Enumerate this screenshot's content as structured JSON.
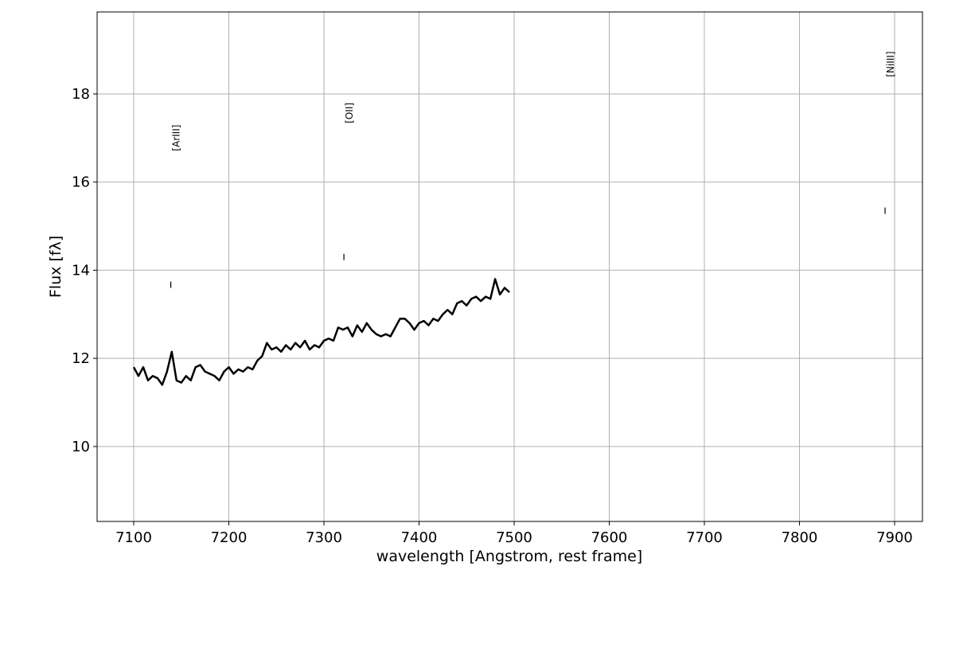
{
  "chart_data": {
    "type": "line",
    "x_label": "wavelength [Angstrom, rest frame]",
    "y_label": "Flux [fλ]",
    "color": "#000000",
    "grid": true,
    "xlim": [
      7061.5,
      7929.3
    ],
    "ylim": [
      8.3,
      19.86
    ],
    "xticks": [
      7100,
      7200,
      7300,
      7400,
      7500,
      7600,
      7700,
      7800,
      7900
    ],
    "yticks": [
      10,
      12,
      14,
      16,
      18
    ],
    "x": [
      7100,
      7105,
      7110,
      7115,
      7120,
      7125,
      7130,
      7135,
      7140,
      7145,
      7150,
      7155,
      7160,
      7165,
      7170,
      7175,
      7180,
      7185,
      7190,
      7195,
      7200,
      7205,
      7210,
      7215,
      7220,
      7225,
      7230,
      7235,
      7240,
      7245,
      7250,
      7255,
      7260,
      7265,
      7270,
      7275,
      7280,
      7285,
      7290,
      7295,
      7300,
      7305,
      7310,
      7315,
      7320,
      7325,
      7330,
      7335,
      7340,
      7345,
      7350,
      7355,
      7360,
      7365,
      7370,
      7375,
      7380,
      7385,
      7390,
      7395,
      7400,
      7405,
      7410,
      7415,
      7420,
      7425,
      7430,
      7435,
      7440,
      7445,
      7450,
      7455,
      7460,
      7465,
      7470,
      7475,
      7480,
      7485,
      7490,
      7495
    ],
    "values": [
      11.8,
      11.6,
      11.8,
      11.5,
      11.6,
      11.55,
      11.4,
      11.7,
      12.15,
      11.5,
      11.45,
      11.6,
      11.5,
      11.8,
      11.85,
      11.7,
      11.65,
      11.6,
      11.5,
      11.7,
      11.8,
      11.65,
      11.75,
      11.7,
      11.8,
      11.75,
      11.95,
      12.05,
      12.35,
      12.2,
      12.25,
      12.15,
      12.3,
      12.2,
      12.35,
      12.25,
      12.4,
      12.2,
      12.3,
      12.25,
      12.4,
      12.45,
      12.4,
      12.7,
      12.65,
      12.7,
      12.5,
      12.75,
      12.6,
      12.8,
      12.65,
      12.55,
      12.5,
      12.55,
      12.5,
      12.7,
      12.9,
      12.9,
      12.8,
      12.65,
      12.8,
      12.85,
      12.75,
      12.9,
      12.85,
      13.0,
      13.1,
      13.0,
      13.25,
      13.3,
      13.2,
      13.35,
      13.4,
      13.3,
      13.4,
      13.35,
      13.8,
      13.45,
      13.6,
      13.5
    ],
    "lines": [
      {
        "label": "[ArIII]",
        "x": 7139,
        "y": 13.67
      },
      {
        "label": "[OII]",
        "x": 7321,
        "y": 14.3
      },
      {
        "label": "[NiIII]",
        "x": 7890,
        "y": 15.35
      }
    ]
  }
}
